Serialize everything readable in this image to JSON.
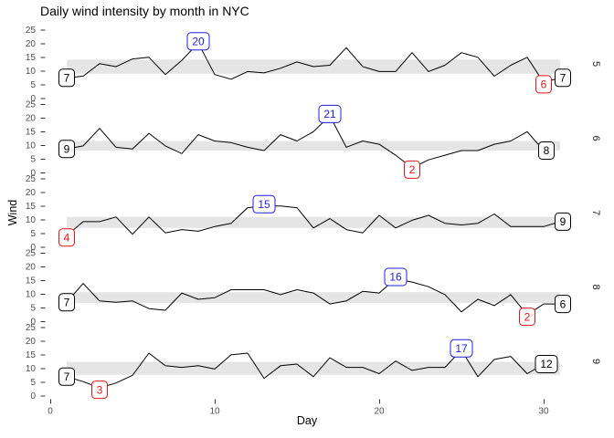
{
  "title": "Daily wind intensity by month in NYC",
  "axes": {
    "x_label": "Day",
    "y_label": "Wind",
    "x_ticks": [
      0,
      10,
      20,
      30
    ],
    "y_ticks": [
      0,
      5,
      10,
      15,
      20,
      25
    ]
  },
  "colors": {
    "line": "#000000",
    "band": "#E5E5E5",
    "max_label": "#1F1FD8",
    "min_label": "#E01414",
    "endpoint_label": "#000000",
    "tick_text": "#4D4D4D",
    "tick_mark": "#333333",
    "strip_text": "#1A1A1A",
    "label_box_fill": "#FFFFFF"
  },
  "chart_data": {
    "type": "line",
    "title": "Daily wind intensity by month in NYC",
    "xlabel": "Day",
    "ylabel": "Wind",
    "x_range": [
      0,
      31
    ],
    "y_range_per_facet": [
      0,
      25
    ],
    "grid": false,
    "band_x_range": [
      1,
      31
    ],
    "facets": [
      {
        "strip": "5",
        "band": [
          8.9,
          14.05
        ],
        "values": [
          7.4,
          8.0,
          12.6,
          11.5,
          14.3,
          14.9,
          8.6,
          13.8,
          20.1,
          8.6,
          6.9,
          9.7,
          9.2,
          10.9,
          13.2,
          11.5,
          12.0,
          18.4,
          11.5,
          9.7,
          9.7,
          16.6,
          9.7,
          12.0,
          16.6,
          14.9,
          8.0,
          12.0,
          14.9,
          5.7,
          7.4
        ],
        "labels": [
          {
            "text": "7",
            "day": 1,
            "value": 7.4,
            "kind": "endpoint"
          },
          {
            "text": "20",
            "day": 9,
            "value": 20.1,
            "kind": "max"
          },
          {
            "text": "6",
            "day": 30,
            "value": 5.7,
            "kind": "min"
          },
          {
            "text": "7",
            "day": 31,
            "value": 7.4,
            "kind": "endpoint"
          }
        ]
      },
      {
        "strip": "6",
        "band": [
          8.0,
          11.5
        ],
        "values": [
          8.6,
          9.7,
          16.1,
          9.2,
          8.6,
          14.3,
          9.7,
          6.9,
          13.8,
          11.5,
          10.9,
          9.2,
          8.0,
          13.8,
          11.5,
          14.9,
          20.7,
          9.2,
          11.5,
          10.3,
          6.3,
          1.7,
          4.6,
          6.3,
          8.0,
          8.0,
          10.3,
          11.5,
          14.9,
          8.0
        ],
        "labels": [
          {
            "text": "9",
            "day": 1,
            "value": 8.6,
            "kind": "endpoint"
          },
          {
            "text": "21",
            "day": 17,
            "value": 20.7,
            "kind": "max"
          },
          {
            "text": "2",
            "day": 22,
            "value": 1.7,
            "kind": "min"
          },
          {
            "text": "8",
            "day": 30,
            "value": 8.0,
            "kind": "endpoint"
          }
        ]
      },
      {
        "strip": "7",
        "band": [
          6.9,
          10.9
        ],
        "values": [
          4.1,
          9.2,
          9.2,
          10.9,
          4.6,
          10.9,
          5.1,
          6.3,
          5.7,
          7.4,
          8.6,
          14.3,
          14.9,
          14.9,
          14.3,
          6.9,
          10.3,
          6.3,
          5.1,
          11.5,
          6.9,
          9.7,
          11.5,
          8.6,
          8.0,
          8.6,
          12.0,
          7.4,
          7.4,
          7.4,
          9.2
        ],
        "labels": [
          {
            "text": "4",
            "day": 1,
            "value": 4.1,
            "kind": "min"
          },
          {
            "text": "15",
            "day": 13,
            "value": 14.9,
            "kind": "max"
          },
          {
            "text": "9",
            "day": 31,
            "value": 9.2,
            "kind": "endpoint"
          }
        ]
      },
      {
        "strip": "8",
        "band": [
          6.6,
          10.6
        ],
        "values": [
          6.9,
          13.8,
          7.4,
          6.9,
          7.4,
          4.6,
          4.0,
          10.3,
          8.0,
          8.6,
          11.5,
          11.5,
          11.5,
          9.7,
          11.5,
          10.3,
          6.3,
          7.4,
          10.9,
          10.3,
          15.5,
          14.3,
          12.6,
          9.7,
          3.4,
          8.0,
          5.7,
          9.7,
          2.3,
          6.3,
          6.3
        ],
        "labels": [
          {
            "text": "7",
            "day": 1,
            "value": 6.9,
            "kind": "endpoint"
          },
          {
            "text": "16",
            "day": 21,
            "value": 15.5,
            "kind": "max"
          },
          {
            "text": "2",
            "day": 29,
            "value": 2.3,
            "kind": "min"
          },
          {
            "text": "6",
            "day": 31,
            "value": 6.3,
            "kind": "endpoint"
          }
        ]
      },
      {
        "strip": "9",
        "band": [
          7.55,
          12.33
        ],
        "values": [
          6.9,
          5.1,
          2.8,
          4.6,
          7.4,
          15.5,
          10.9,
          10.3,
          10.9,
          9.7,
          14.9,
          15.5,
          6.3,
          10.9,
          11.5,
          6.9,
          13.8,
          10.3,
          10.3,
          8.0,
          12.6,
          9.2,
          10.3,
          10.3,
          16.6,
          6.9,
          13.2,
          14.3,
          8.0,
          11.5
        ],
        "labels": [
          {
            "text": "7",
            "day": 1,
            "value": 6.9,
            "kind": "endpoint"
          },
          {
            "text": "3",
            "day": 3,
            "value": 2.8,
            "kind": "min"
          },
          {
            "text": "17",
            "day": 25,
            "value": 16.6,
            "kind": "max"
          },
          {
            "text": "12",
            "day": 30,
            "value": 11.5,
            "kind": "endpoint"
          }
        ]
      }
    ]
  }
}
